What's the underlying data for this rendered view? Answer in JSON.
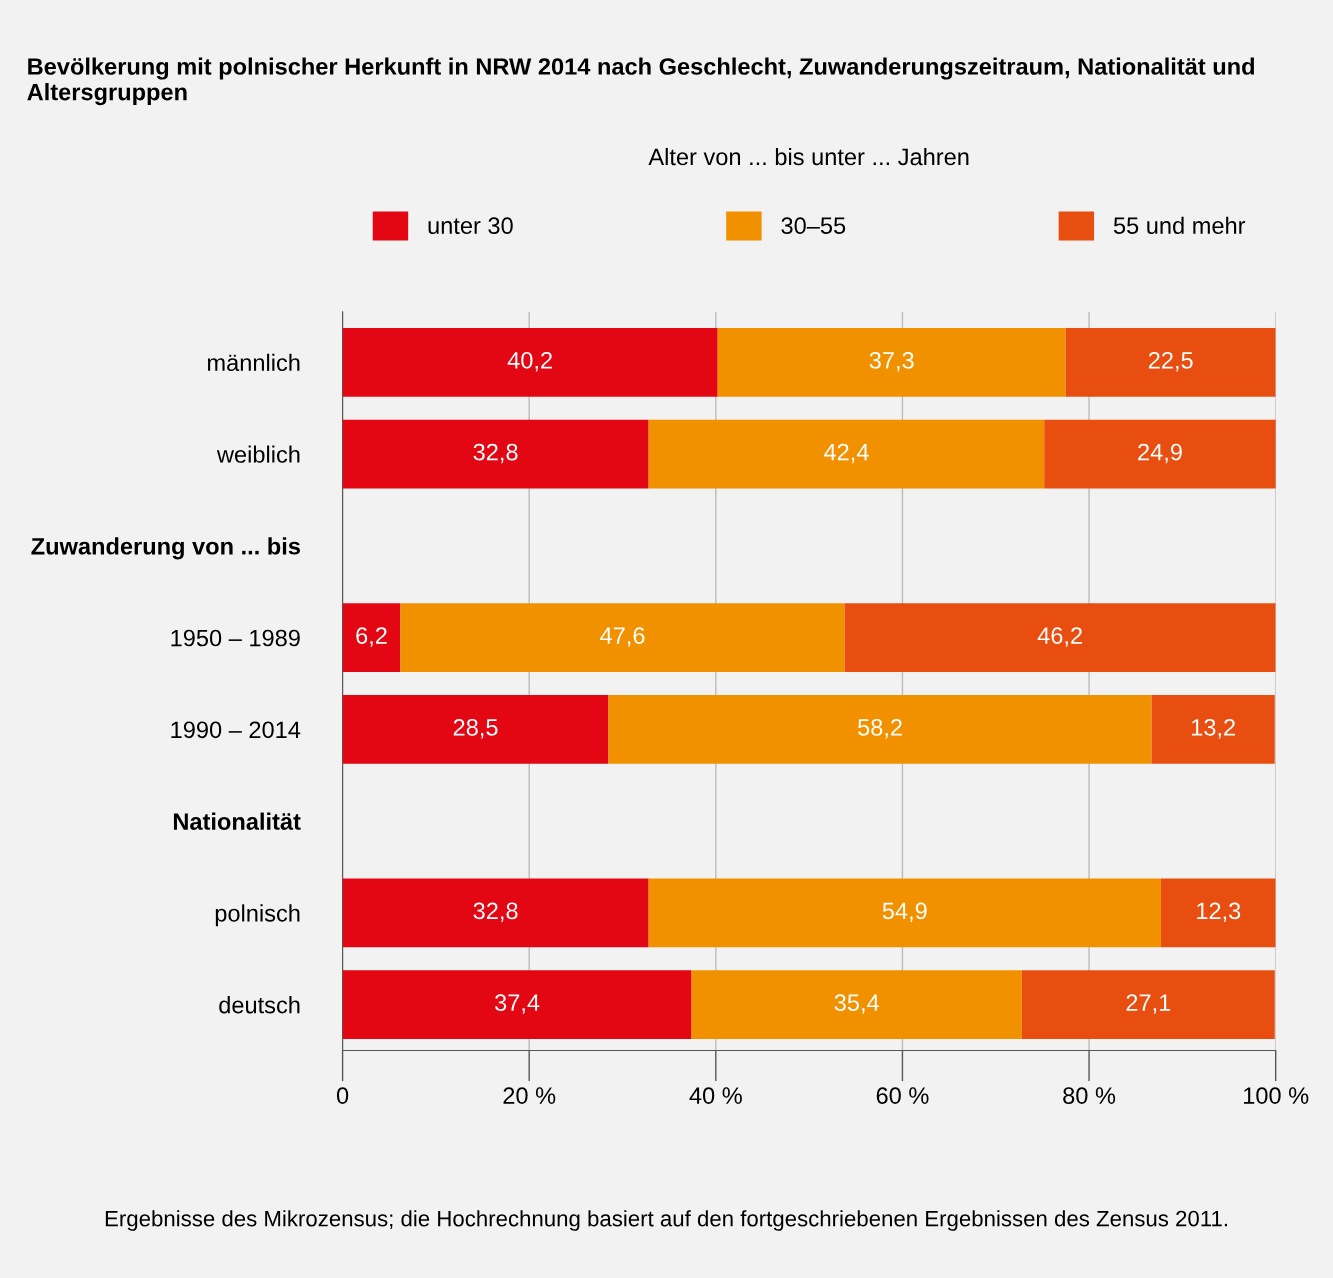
{
  "chart_data": {
    "type": "bar",
    "orientation": "horizontal",
    "stacked": true,
    "title": "Bevölkerung mit polnischer Herkunft in NRW 2014 nach Geschlecht, Zuwanderungszeitraum, Nationalität und Altersgruppen",
    "legend_title": "Alter von ... bis unter ... Jahren",
    "categories": [
      "männlich",
      "weiblich",
      "Zuwanderung von ... bis",
      "1950 – 1989",
      "1990 – 2014",
      "Nationalität",
      "polnisch",
      "deutsch"
    ],
    "series": [
      {
        "name": "unter 30",
        "color": "#e30613",
        "values": [
          40.2,
          32.8,
          null,
          6.2,
          28.5,
          null,
          32.8,
          37.4
        ],
        "value_labels": [
          "40,2",
          "32,8",
          null,
          "6,2",
          "28,5",
          null,
          "32,8",
          "37,4"
        ]
      },
      {
        "name": "30–55",
        "color": "#f29100",
        "values": [
          37.3,
          42.4,
          null,
          47.6,
          58.2,
          null,
          54.9,
          35.4
        ],
        "value_labels": [
          "37,3",
          "42,4",
          null,
          "47,6",
          "58,2",
          null,
          "54,9",
          "35,4"
        ]
      },
      {
        "name": "55 und mehr",
        "color": "#e84e0f",
        "values": [
          22.5,
          24.9,
          null,
          46.2,
          13.2,
          null,
          12.3,
          27.1
        ],
        "value_labels": [
          "22,5",
          "24,9",
          null,
          "46,2",
          "13,2",
          null,
          "12,3",
          "27,1"
        ]
      }
    ],
    "xlim": [
      0,
      100
    ],
    "xticks": [
      0,
      {
        "value": 20,
        "label": "20 %"
      },
      {
        "value": 40,
        "label": "40 %"
      },
      {
        "value": 60,
        "label": "60 %"
      },
      {
        "value": 80,
        "label": "80 %"
      },
      {
        "value": 100,
        "label": "100 %"
      }
    ],
    "grid": "x",
    "legend": "top",
    "annotations": [
      "Ergebnisse des Mikrozensus; die Hochrechnung basiert auf den fortgeschriebenen Ergebnissen des Zensus 2011."
    ]
  }
}
